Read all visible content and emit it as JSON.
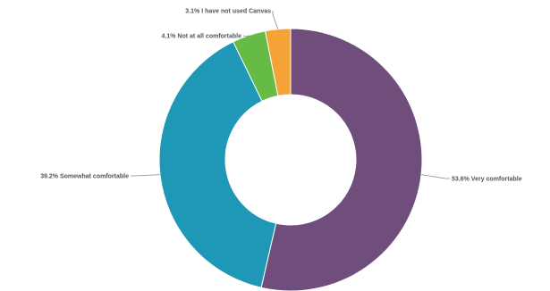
{
  "chart_data": {
    "type": "pie",
    "title": "",
    "slices": [
      {
        "label": "Very comfortable",
        "value": 53.6,
        "display": "53.6% Very comfortable",
        "color": "#6f4e7c"
      },
      {
        "label": "Somewhat comfortable",
        "value": 39.2,
        "display": "39.2% Somewhat comfortable",
        "color": "#1f97b6"
      },
      {
        "label": "Not at all comfortable",
        "value": 4.1,
        "display": "4.1% Not at all comfortable",
        "color": "#65bb45"
      },
      {
        "label": "I have not used Canvas",
        "value": 3.1,
        "display": "3.1% I have not used Canvas",
        "color": "#f5a236"
      }
    ],
    "donut": true
  }
}
